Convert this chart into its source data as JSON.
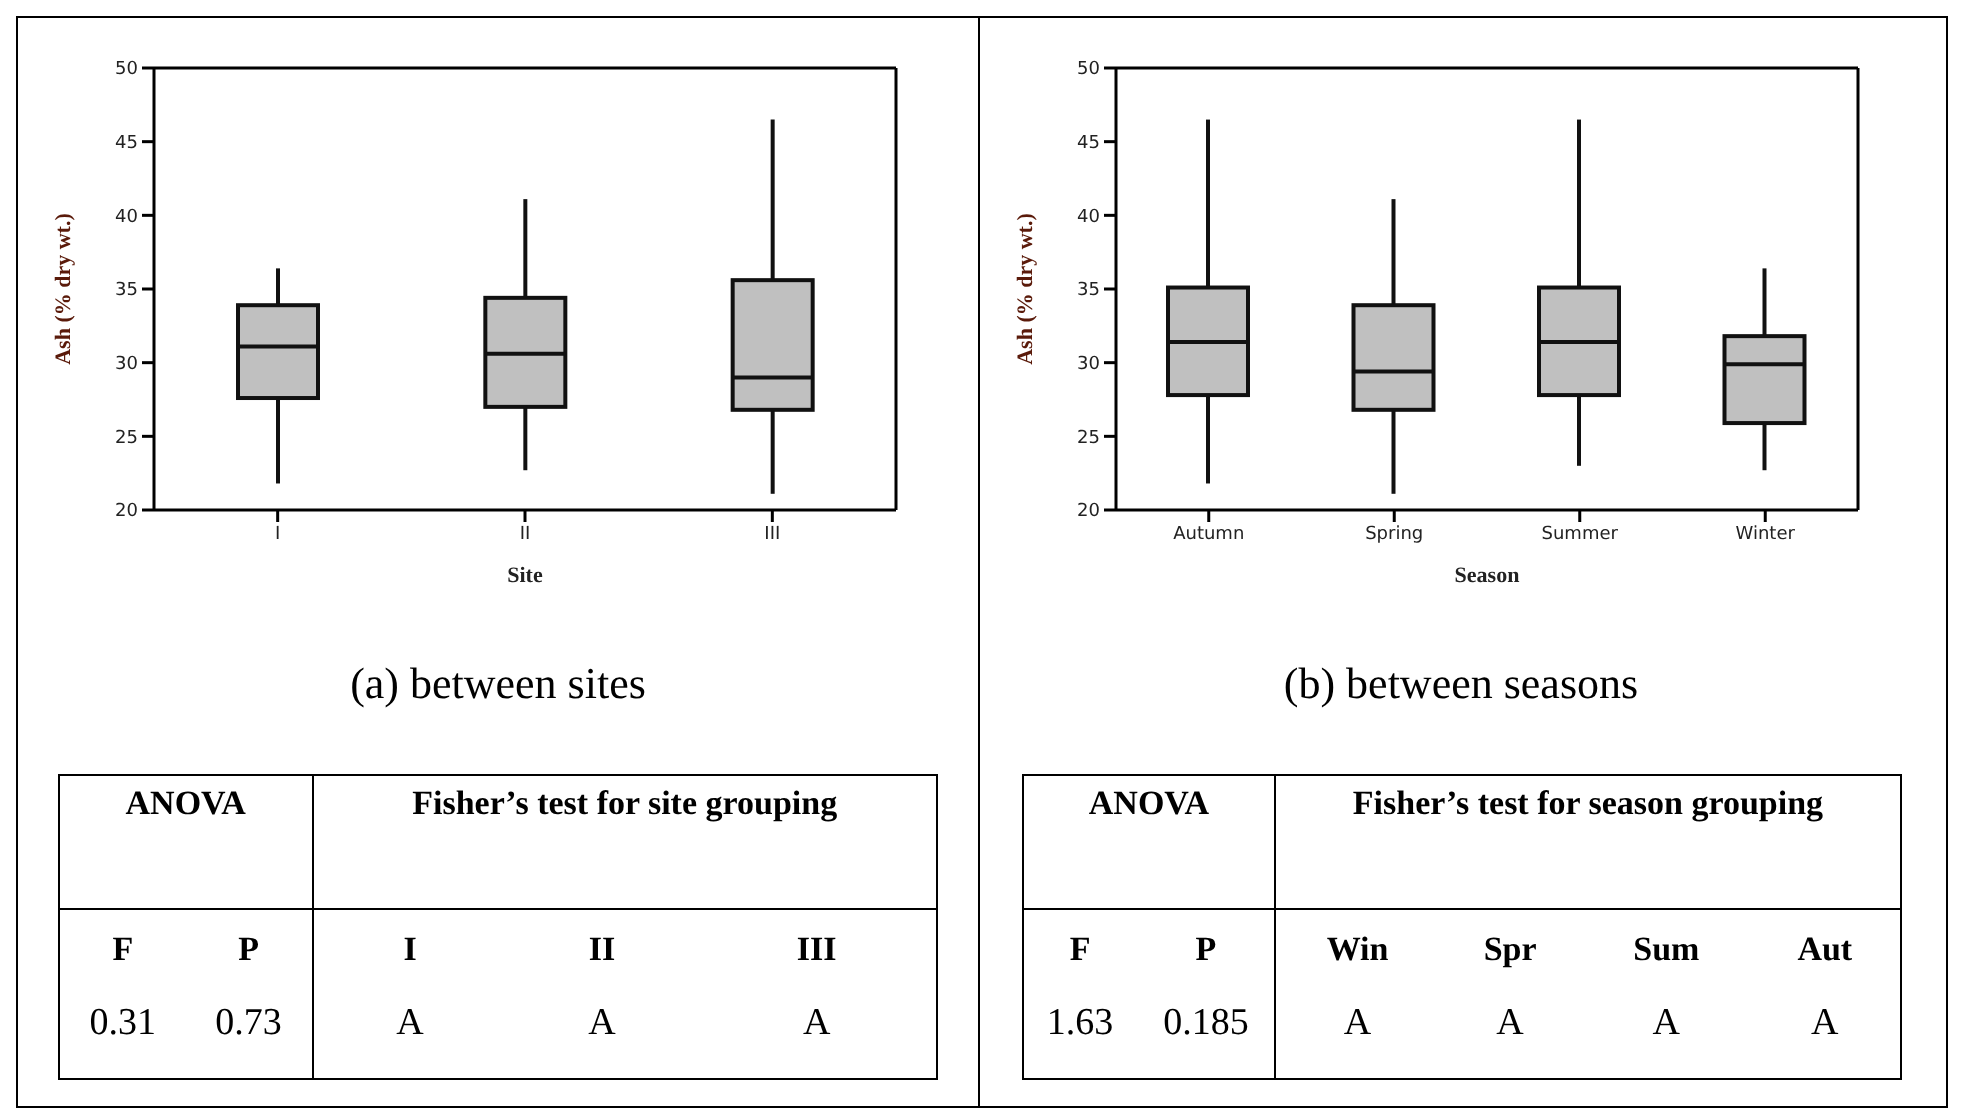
{
  "chart_data": [
    {
      "type": "box",
      "categories": [
        "I",
        "II",
        "III"
      ],
      "xlabel": "Site",
      "ylabel": "Ash (% dry wt.)",
      "ylim": [
        20,
        50
      ],
      "yticks": [
        20,
        25,
        30,
        35,
        40,
        45,
        50
      ],
      "grid": false,
      "color": "#c0c0c0",
      "boxes": [
        {
          "low": 21.8,
          "q1": 27.6,
          "median": 31.1,
          "q3": 33.9,
          "high": 36.4
        },
        {
          "low": 22.7,
          "q1": 27.0,
          "median": 30.6,
          "q3": 34.4,
          "high": 41.1
        },
        {
          "low": 21.1,
          "q1": 26.8,
          "median": 29.0,
          "q3": 35.6,
          "high": 46.5
        }
      ],
      "annotations": [
        "(a) between sites",
        "ANOVA",
        "Fisher’s test for site grouping",
        "F",
        "P",
        "I",
        "II",
        "III",
        "0.31",
        "0.73",
        "A",
        "A",
        "A"
      ]
    },
    {
      "type": "box",
      "categories": [
        "Autumn",
        "Spring",
        "Summer",
        "Winter"
      ],
      "xlabel": "Season",
      "ylabel": "Ash (% dry wt.)",
      "ylim": [
        20,
        50
      ],
      "yticks": [
        20,
        25,
        30,
        35,
        40,
        45,
        50
      ],
      "grid": false,
      "color": "#c0c0c0",
      "boxes": [
        {
          "low": 21.8,
          "q1": 27.8,
          "median": 31.4,
          "q3": 35.1,
          "high": 46.5
        },
        {
          "low": 21.1,
          "q1": 26.8,
          "median": 29.4,
          "q3": 33.9,
          "high": 41.1
        },
        {
          "low": 23.0,
          "q1": 27.8,
          "median": 31.4,
          "q3": 35.1,
          "high": 46.5
        },
        {
          "low": 22.7,
          "q1": 25.9,
          "median": 29.9,
          "q3": 31.8,
          "high": 36.4
        }
      ],
      "annotations": [
        "(b) between seasons",
        "ANOVA",
        "Fisher’s test for season grouping",
        "F",
        "P",
        "Win",
        "Spr",
        "Sum",
        "Aut",
        "1.63",
        "0.185",
        "A",
        "A",
        "A",
        "A"
      ]
    }
  ]
}
